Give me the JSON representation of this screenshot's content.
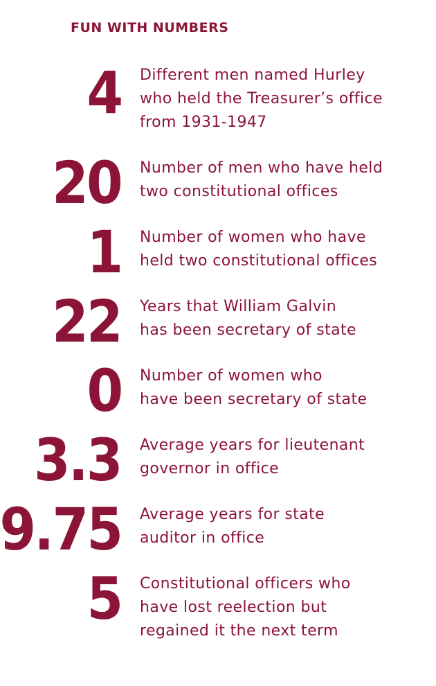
{
  "heading": "FUN WITH NUMBERS",
  "stats": [
    {
      "number": "4",
      "lines": [
        "Different men named Hurley",
        "who held the Treasurer’s office",
        "from 1931-1947"
      ]
    },
    {
      "number": "20",
      "lines": [
        "Number of men who have held",
        "two constitutional offices"
      ]
    },
    {
      "number": "1",
      "lines": [
        "Number of women who have",
        "held two constitutional offices"
      ]
    },
    {
      "number": "22",
      "lines": [
        "Years that William Galvin",
        "has been secretary of state"
      ]
    },
    {
      "number": "0",
      "lines": [
        "Number of women who",
        "have been secretary of state"
      ]
    },
    {
      "number": "3.3",
      "lines": [
        "Average years for lieutenant",
        "governor in office"
      ]
    },
    {
      "number": "9.75",
      "lines": [
        "Average years for state",
        "auditor in office"
      ]
    },
    {
      "number": "5",
      "lines": [
        "Constitutional officers who",
        "have lost reelection but",
        "regained it the next term"
      ]
    }
  ]
}
